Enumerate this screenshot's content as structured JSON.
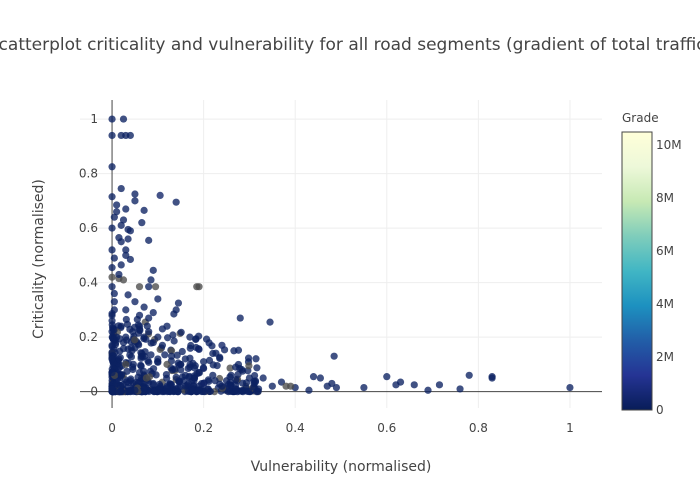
{
  "chart_data": {
    "type": "scatter",
    "title": "Scatterplot criticality and vulnerability for all road segments (gradient of total traffic)",
    "xlabel": "Vulnerability (normalised)",
    "ylabel": "Criticality (normalised)",
    "xlim": [
      -0.07,
      1.07
    ],
    "ylim": [
      -0.06,
      1.07
    ],
    "x_ticks": [
      0,
      0.2,
      0.4,
      0.6,
      0.8,
      1
    ],
    "x_tick_labels": [
      "0",
      "0.2",
      "0.4",
      "0.6",
      "0.8",
      "1"
    ],
    "y_ticks": [
      0,
      0.2,
      0.4,
      0.6,
      0.8,
      1
    ],
    "y_tick_labels": [
      "0",
      "0.2",
      "0.4",
      "0.6",
      "0.8",
      "1"
    ],
    "grid": true,
    "colorbar": {
      "title": "Grade",
      "range": [
        0,
        10500000
      ],
      "ticks": [
        0,
        2000000,
        4000000,
        6000000,
        8000000,
        10000000
      ],
      "tick_labels": [
        "0",
        "2M",
        "4M",
        "6M",
        "8M",
        "10M"
      ],
      "colorscale": [
        "#081d58",
        "#253494",
        "#225ea8",
        "#1d91c0",
        "#41b6c4",
        "#7fcdbb",
        "#c7e9b4",
        "#edf8d9",
        "#ffffd9"
      ]
    },
    "points": [
      [
        0.0,
        1.0,
        200000
      ],
      [
        0.025,
        1.0,
        200000
      ],
      [
        0.0,
        0.94,
        200000
      ],
      [
        0.02,
        0.94,
        200000
      ],
      [
        0.03,
        0.94,
        200000
      ],
      [
        0.04,
        0.94,
        200000
      ],
      [
        0.0,
        0.825,
        200000
      ],
      [
        0.0,
        0.715,
        200000
      ],
      [
        0.02,
        0.745,
        200000
      ],
      [
        0.05,
        0.725,
        200000
      ],
      [
        0.05,
        0.7,
        200000
      ],
      [
        0.01,
        0.685,
        200000
      ],
      [
        0.03,
        0.67,
        200000
      ],
      [
        0.07,
        0.665,
        200000
      ],
      [
        0.105,
        0.72,
        300000
      ],
      [
        0.14,
        0.695,
        200000
      ],
      [
        0.0,
        0.6,
        200000
      ],
      [
        0.02,
        0.61,
        200000
      ],
      [
        0.04,
        0.59,
        200000
      ],
      [
        0.035,
        0.595,
        200000
      ],
      [
        0.065,
        0.62,
        200000
      ],
      [
        0.015,
        0.565,
        200000
      ],
      [
        0.08,
        0.555,
        200000
      ],
      [
        0.0,
        0.52,
        200000
      ],
      [
        0.03,
        0.52,
        200000
      ],
      [
        0.005,
        0.49,
        200000
      ],
      [
        0.04,
        0.485,
        200000
      ],
      [
        0.0,
        0.455,
        200000
      ],
      [
        0.02,
        0.465,
        200000
      ],
      [
        0.09,
        0.445,
        200000
      ],
      [
        0.0,
        0.42,
        1000000
      ],
      [
        0.015,
        0.415,
        1000000
      ],
      [
        0.025,
        0.41,
        1000000
      ],
      [
        0.0,
        0.385,
        200000
      ],
      [
        0.06,
        0.385,
        1200000
      ],
      [
        0.085,
        0.41,
        200000
      ],
      [
        0.08,
        0.385,
        200000
      ],
      [
        0.095,
        0.385,
        1200000
      ],
      [
        0.185,
        0.385,
        1500000
      ],
      [
        0.19,
        0.385,
        1000000
      ],
      [
        0.035,
        0.355,
        200000
      ],
      [
        0.1,
        0.34,
        200000
      ],
      [
        0.145,
        0.325,
        200000
      ],
      [
        0.005,
        0.33,
        200000
      ],
      [
        0.14,
        0.3,
        200000
      ],
      [
        0.135,
        0.285,
        200000
      ],
      [
        0.28,
        0.27,
        200000
      ],
      [
        0.345,
        0.255,
        200000
      ],
      [
        0.03,
        0.3,
        200000
      ],
      [
        0.06,
        0.28,
        200000
      ],
      [
        0.08,
        0.27,
        200000
      ],
      [
        0.12,
        0.24,
        200000
      ],
      [
        0.11,
        0.23,
        200000
      ],
      [
        0.0,
        0.26,
        200000
      ],
      [
        0.02,
        0.24,
        200000
      ],
      [
        0.045,
        0.22,
        200000
      ],
      [
        0.17,
        0.2,
        200000
      ],
      [
        0.24,
        0.17,
        300000
      ],
      [
        0.19,
        0.155,
        300000
      ],
      [
        0.22,
        0.14,
        200000
      ],
      [
        0.105,
        0.155,
        1200000
      ],
      [
        0.13,
        0.15,
        1000000
      ],
      [
        0.485,
        0.13,
        200000
      ],
      [
        0.27,
        0.09,
        200000
      ],
      [
        0.285,
        0.075,
        200000
      ],
      [
        0.2,
        0.085,
        300000
      ],
      [
        0.26,
        0.06,
        200000
      ],
      [
        0.3,
        0.05,
        200000
      ],
      [
        0.33,
        0.05,
        200000
      ],
      [
        0.37,
        0.035,
        200000
      ],
      [
        0.44,
        0.055,
        200000
      ],
      [
        0.455,
        0.05,
        200000
      ],
      [
        0.48,
        0.03,
        200000
      ],
      [
        0.6,
        0.055,
        200000
      ],
      [
        0.62,
        0.025,
        200000
      ],
      [
        0.63,
        0.035,
        200000
      ],
      [
        0.66,
        0.025,
        200000
      ],
      [
        0.69,
        0.005,
        200000
      ],
      [
        0.715,
        0.025,
        200000
      ],
      [
        0.76,
        0.01,
        200000
      ],
      [
        0.78,
        0.06,
        200000
      ],
      [
        0.83,
        0.055,
        200000
      ],
      [
        0.83,
        0.05,
        200000
      ],
      [
        1.0,
        0.015,
        200000
      ],
      [
        0.55,
        0.015,
        200000
      ],
      [
        0.49,
        0.015,
        200000
      ],
      [
        0.47,
        0.02,
        200000
      ],
      [
        0.43,
        0.005,
        200000
      ],
      [
        0.4,
        0.015,
        200000
      ],
      [
        0.38,
        0.02,
        1000000
      ],
      [
        0.39,
        0.02,
        900000
      ],
      [
        0.35,
        0.02,
        200000
      ],
      [
        0.32,
        0.01,
        200000
      ],
      [
        0.31,
        0.03,
        200000
      ],
      [
        0.225,
        0.04,
        200000
      ],
      [
        0.2,
        0.03,
        300000
      ],
      [
        0.18,
        0.05,
        200000
      ],
      [
        0.16,
        0.06,
        200000
      ],
      [
        0.15,
        0.1,
        200000
      ],
      [
        0.16,
        0.12,
        200000
      ],
      [
        0.12,
        0.1,
        1000000
      ],
      [
        0.1,
        0.12,
        200000
      ],
      [
        0.085,
        0.135,
        200000
      ],
      [
        0.065,
        0.14,
        200000
      ],
      [
        0.05,
        0.16,
        200000
      ],
      [
        0.025,
        0.18,
        200000
      ],
      [
        0.01,
        0.2,
        200000
      ],
      [
        0.0,
        0.22,
        200000
      ],
      [
        0.005,
        0.3,
        200000
      ],
      [
        0.0,
        0.17,
        200000
      ],
      [
        0.015,
        0.12,
        200000
      ],
      [
        0.03,
        0.1,
        1200000
      ],
      [
        0.045,
        0.09,
        200000
      ],
      [
        0.06,
        0.07,
        200000
      ],
      [
        0.075,
        0.05,
        1000000
      ],
      [
        0.09,
        0.03,
        200000
      ],
      [
        0.105,
        0.02,
        200000
      ],
      [
        0.12,
        0.015,
        200000
      ],
      [
        0.14,
        0.01,
        200000
      ],
      [
        0.16,
        0.02,
        200000
      ],
      [
        0.19,
        0.005,
        200000
      ],
      [
        0.21,
        0.01,
        200000
      ],
      [
        0.24,
        0.02,
        200000
      ],
      [
        0.27,
        0.01,
        200000
      ],
      [
        0.02,
        0.06,
        200000
      ],
      [
        0.04,
        0.04,
        200000
      ],
      [
        0.01,
        0.03,
        200000
      ],
      [
        0.0,
        0.01,
        200000
      ],
      [
        0.05,
        0.005,
        200000
      ],
      [
        0.07,
        0.01,
        200000
      ],
      [
        0.0,
        0.12,
        200000
      ],
      [
        0.0,
        0.07,
        200000
      ],
      [
        0.03,
        0.2,
        200000
      ],
      [
        0.07,
        0.2,
        200000
      ],
      [
        0.09,
        0.18,
        200000
      ],
      [
        0.11,
        0.17,
        200000
      ],
      [
        0.005,
        0.36,
        200000
      ],
      [
        0.015,
        0.43,
        200000
      ],
      [
        0.03,
        0.5,
        200000
      ],
      [
        0.02,
        0.55,
        200000
      ],
      [
        0.005,
        0.64,
        200000
      ],
      [
        0.01,
        0.66,
        200000
      ],
      [
        0.025,
        0.63,
        200000
      ],
      [
        0.035,
        0.56,
        200000
      ],
      [
        0.05,
        0.33,
        200000
      ],
      [
        0.07,
        0.31,
        200000
      ],
      [
        0.09,
        0.29,
        200000
      ],
      [
        0.06,
        0.24,
        200000
      ],
      [
        0.08,
        0.22,
        200000
      ],
      [
        0.1,
        0.2,
        200000
      ],
      [
        0.13,
        0.13,
        200000
      ],
      [
        0.15,
        0.08,
        200000
      ],
      [
        0.17,
        0.09,
        200000
      ],
      [
        0.2,
        0.11,
        200000
      ],
      [
        0.22,
        0.06,
        200000
      ],
      [
        0.25,
        0.04,
        200000
      ]
    ]
  }
}
